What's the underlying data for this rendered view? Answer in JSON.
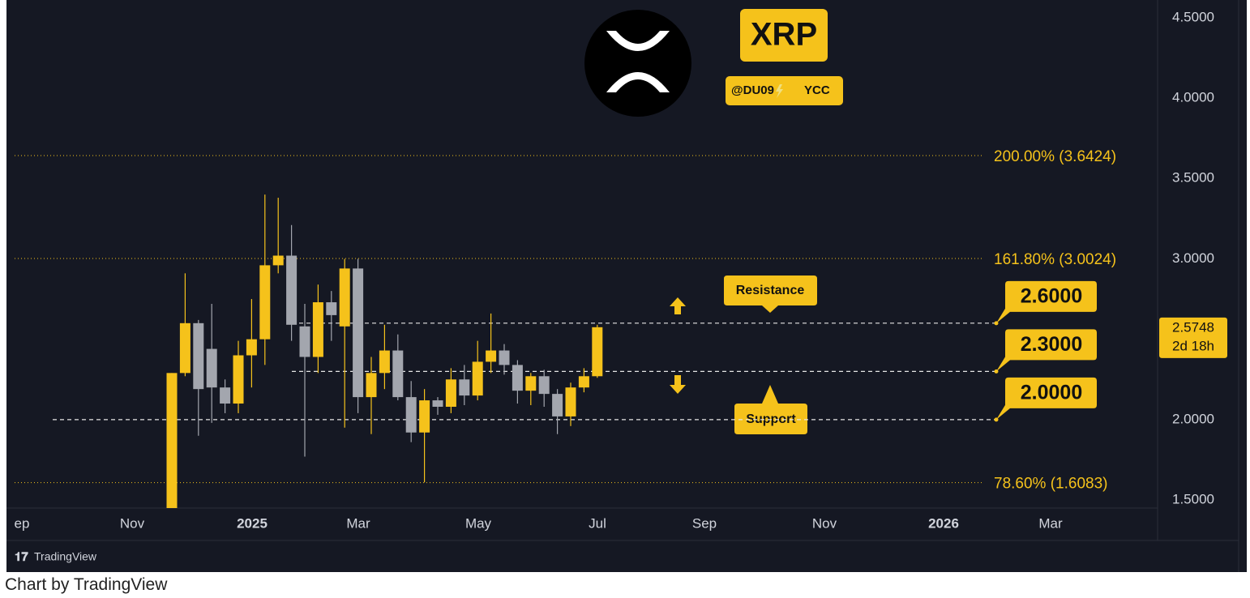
{
  "chart_data": {
    "type": "candlestick",
    "categories": [
      null,
      null,
      null,
      null,
      null,
      null,
      null,
      null,
      null,
      null,
      null,
      null,
      null,
      null,
      null,
      null,
      null,
      null,
      null,
      null,
      null,
      null,
      null,
      null,
      null,
      null,
      null,
      null,
      null,
      null,
      null,
      null,
      null
    ],
    "open": [
      1.38,
      2.29,
      2.6,
      2.44,
      2.2,
      2.1,
      2.4,
      2.5,
      2.96,
      3.02,
      2.58,
      2.39,
      2.73,
      2.58,
      2.94,
      2.14,
      2.29,
      2.43,
      2.14,
      1.92,
      2.12,
      2.08,
      2.25,
      2.15,
      2.36,
      2.43,
      2.34,
      2.18,
      2.27,
      2.16,
      2.02,
      2.2,
      2.27
    ],
    "high": [
      2.29,
      2.91,
      2.62,
      2.72,
      2.25,
      2.49,
      2.75,
      3.4,
      3.38,
      3.21,
      2.72,
      2.84,
      2.8,
      3.0,
      3.0,
      2.39,
      2.59,
      2.53,
      2.24,
      2.19,
      2.14,
      2.32,
      2.34,
      2.49,
      2.66,
      2.47,
      2.37,
      2.29,
      2.31,
      2.19,
      2.23,
      2.32,
      2.59
    ],
    "low": [
      1.38,
      2.27,
      1.9,
      1.98,
      2.04,
      2.04,
      2.2,
      2.34,
      2.91,
      2.49,
      1.77,
      2.29,
      2.49,
      1.95,
      2.04,
      1.91,
      2.19,
      2.12,
      1.86,
      1.61,
      2.03,
      2.04,
      2.09,
      2.12,
      2.29,
      2.28,
      2.1,
      2.09,
      2.08,
      1.91,
      1.96,
      2.17,
      2.26
    ],
    "close": [
      2.29,
      2.6,
      2.19,
      2.2,
      2.1,
      2.4,
      2.5,
      2.96,
      3.02,
      2.59,
      2.39,
      2.73,
      2.65,
      2.94,
      2.14,
      2.29,
      2.43,
      2.14,
      1.92,
      2.12,
      2.08,
      2.25,
      2.15,
      2.36,
      2.43,
      2.34,
      2.18,
      2.27,
      2.16,
      2.02,
      2.2,
      2.27,
      2.5748
    ],
    "up_color": "#f5c21b",
    "down_color": "#a3a6ae",
    "ylim": [
      1.45,
      4.61
    ],
    "yticks": [
      {
        "value": 1.5,
        "label": "1.5000"
      },
      {
        "value": 2.0,
        "label": "2.0000"
      },
      {
        "value": 3.0,
        "label": "3.0000"
      },
      {
        "value": 3.5,
        "label": "3.5000"
      },
      {
        "value": 4.0,
        "label": "4.0000"
      },
      {
        "value": 4.5,
        "label": "4.5000"
      }
    ],
    "x_labels": [
      "ep",
      "Nov",
      "2025",
      "Mar",
      "May",
      "Jul",
      "Sep",
      "Nov",
      "2026",
      "Mar"
    ],
    "fib_levels": [
      {
        "value": 3.6424,
        "label": "200.00% (3.6424)"
      },
      {
        "value": 3.0024,
        "label": "161.80% (3.0024)"
      },
      {
        "value": 1.6083,
        "label": "78.60% (1.6083)"
      }
    ],
    "levels": [
      {
        "value": 2.6,
        "label": "2.6000"
      },
      {
        "value": 2.3,
        "label": "2.3000"
      },
      {
        "value": 2.0,
        "label": "2.0000"
      }
    ],
    "resistance_label": "Resistance",
    "support_label": "Support",
    "current_price": {
      "value": 2.5748,
      "label": "2.5748"
    },
    "countdown": "2d 18h",
    "logo": {
      "title": "XRP",
      "handle_left": "@DU09",
      "handle_right": "YCC"
    },
    "watermark": "TradingView"
  },
  "caption": "Chart by TradingView"
}
